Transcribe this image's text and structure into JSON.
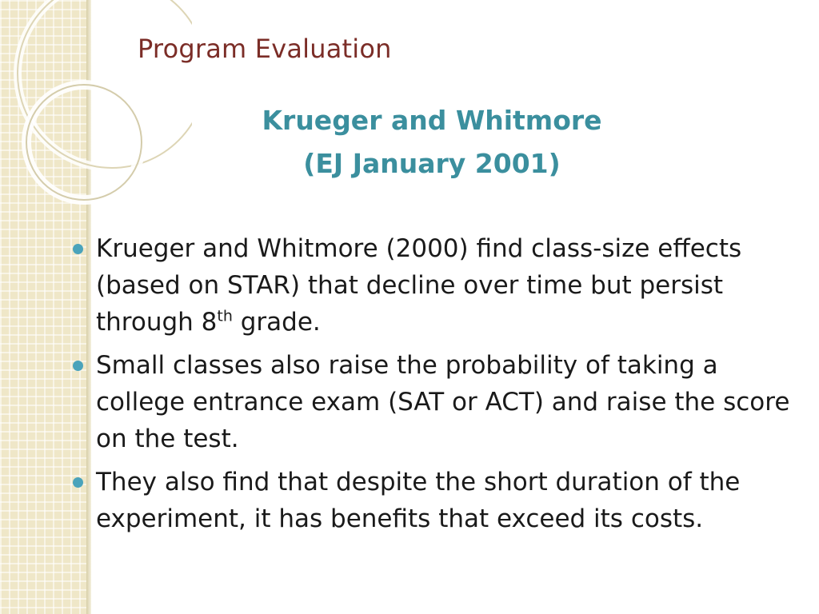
{
  "slide": {
    "title": "Program Evaluation",
    "subtitle_line1": "Krueger and Whitmore",
    "subtitle_line2": "(EJ January 2001)",
    "bullets": [
      {
        "text": "Krueger and Whitmore (2000) find class-size effects (based on STAR) that decline over time but persist through 8",
        "superscript": "th",
        "suffix": " grade."
      },
      {
        "text": "Small classes also raise the probability of taking a college entrance exam (SAT or ACT) and raise the score on the test."
      },
      {
        "text": "They also find that despite the short duration of the experiment, it has benefits that exceed its costs."
      }
    ]
  },
  "colors": {
    "title": "#7b2d27",
    "subtitle": "#3b8f9e",
    "bullet_marker": "#4aa3bb",
    "band": "#efe7c8"
  }
}
